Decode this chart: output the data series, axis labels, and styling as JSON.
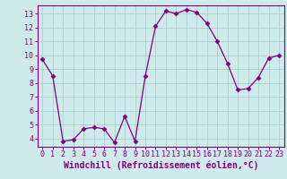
{
  "x": [
    0,
    1,
    2,
    3,
    4,
    5,
    6,
    7,
    8,
    9,
    10,
    11,
    12,
    13,
    14,
    15,
    16,
    17,
    18,
    19,
    20,
    21,
    22,
    23
  ],
  "y": [
    9.7,
    8.5,
    3.8,
    3.9,
    4.7,
    4.8,
    4.7,
    3.7,
    5.6,
    3.8,
    8.5,
    12.1,
    13.2,
    13.0,
    13.3,
    13.1,
    12.3,
    11.0,
    9.4,
    7.5,
    7.6,
    8.4,
    9.8,
    10.0
  ],
  "line_color": "#800080",
  "marker": "D",
  "marker_size": 2.5,
  "bg_color": "#ceeaea",
  "grid_color": "#aacece",
  "xlabel": "Windchill (Refroidissement éolien,°C)",
  "xlim": [
    -0.5,
    23.5
  ],
  "ylim": [
    3.4,
    13.6
  ],
  "yticks": [
    4,
    5,
    6,
    7,
    8,
    9,
    10,
    11,
    12,
    13
  ],
  "xticks": [
    0,
    1,
    2,
    3,
    4,
    5,
    6,
    7,
    8,
    9,
    10,
    11,
    12,
    13,
    14,
    15,
    16,
    17,
    18,
    19,
    20,
    21,
    22,
    23
  ],
  "tick_label_fontsize": 6,
  "xlabel_fontsize": 7,
  "spine_color": "#800080",
  "linewidth": 0.9
}
